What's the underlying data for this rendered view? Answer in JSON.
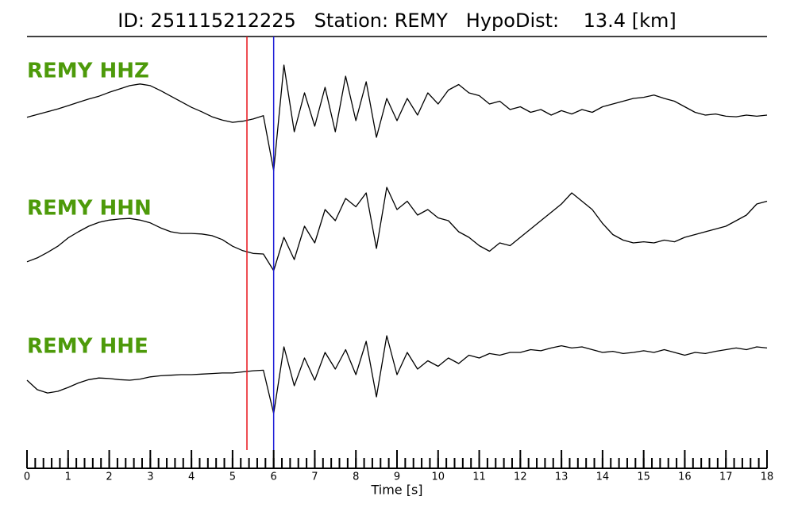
{
  "chart_data": {
    "type": "line",
    "title": "ID: 251115212225   Station: REMY   HypoDist:    13.4 [km]",
    "xlabel": "Time [s]",
    "xlim": [
      0,
      18
    ],
    "xticks": [
      0,
      1,
      2,
      3,
      4,
      5,
      6,
      7,
      8,
      9,
      10,
      11,
      12,
      13,
      14,
      15,
      16,
      17,
      18
    ],
    "xminor_interval": 0.2,
    "ylim": [
      -1,
      1
    ],
    "label_color": "#4d9a0a",
    "picks": [
      {
        "x": 5.35,
        "color": "#e8141a"
      },
      {
        "x": 6.0,
        "color": "#1a1ad6"
      }
    ],
    "x": [
      0,
      0.25,
      0.5,
      0.75,
      1,
      1.25,
      1.5,
      1.75,
      2,
      2.25,
      2.5,
      2.75,
      3,
      3.25,
      3.5,
      3.75,
      4,
      4.25,
      4.5,
      4.75,
      5,
      5.25,
      5.5,
      5.75,
      6,
      6.25,
      6.5,
      6.75,
      7,
      7.25,
      7.5,
      7.75,
      8,
      8.25,
      8.5,
      8.75,
      9,
      9.25,
      9.5,
      9.75,
      10,
      10.25,
      10.5,
      10.75,
      11,
      11.25,
      11.5,
      11.75,
      12,
      12.25,
      12.5,
      12.75,
      13,
      13.25,
      13.5,
      13.75,
      14,
      14.25,
      14.5,
      14.75,
      15,
      15.25,
      15.5,
      15.75,
      16,
      16.25,
      16.5,
      16.75,
      17,
      17.25,
      17.5,
      17.75,
      18
    ],
    "series": [
      {
        "name": "REMY HHZ",
        "color": "#000000",
        "values": [
          -0.04,
          0.01,
          0.06,
          0.11,
          0.17,
          0.23,
          0.29,
          0.34,
          0.41,
          0.47,
          0.53,
          0.56,
          0.53,
          0.44,
          0.34,
          0.24,
          0.14,
          0.06,
          -0.03,
          -0.09,
          -0.13,
          -0.11,
          -0.07,
          -0.01,
          -1.0,
          0.9,
          -0.3,
          0.4,
          -0.2,
          0.5,
          -0.3,
          0.7,
          -0.1,
          0.6,
          -0.4,
          0.3,
          -0.1,
          0.3,
          0.0,
          0.4,
          0.2,
          0.45,
          0.55,
          0.4,
          0.35,
          0.2,
          0.25,
          0.1,
          0.15,
          0.05,
          0.1,
          0.0,
          0.08,
          0.02,
          0.1,
          0.05,
          0.15,
          0.2,
          0.25,
          0.3,
          0.32,
          0.36,
          0.3,
          0.25,
          0.15,
          0.05,
          0.0,
          0.02,
          -0.02,
          -0.03,
          0.0,
          -0.02,
          0.0
        ]
      },
      {
        "name": "REMY HHN",
        "color": "#000000",
        "values": [
          -0.64,
          -0.57,
          -0.47,
          -0.36,
          -0.21,
          -0.1,
          0.0,
          0.07,
          0.11,
          0.13,
          0.14,
          0.11,
          0.06,
          -0.03,
          -0.1,
          -0.13,
          -0.13,
          -0.14,
          -0.17,
          -0.24,
          -0.36,
          -0.44,
          -0.49,
          -0.5,
          -0.8,
          -0.2,
          -0.6,
          0.0,
          -0.3,
          0.3,
          0.1,
          0.5,
          0.35,
          0.6,
          -0.4,
          0.7,
          0.3,
          0.45,
          0.2,
          0.3,
          0.15,
          0.1,
          -0.1,
          -0.2,
          -0.35,
          -0.45,
          -0.3,
          -0.35,
          -0.2,
          -0.05,
          0.1,
          0.25,
          0.4,
          0.6,
          0.45,
          0.3,
          0.05,
          -0.15,
          -0.25,
          -0.3,
          -0.28,
          -0.3,
          -0.25,
          -0.28,
          -0.2,
          -0.15,
          -0.1,
          -0.05,
          0.0,
          0.1,
          0.2,
          0.4,
          0.45
        ]
      },
      {
        "name": "REMY HHE",
        "color": "#000000",
        "values": [
          -0.2,
          -0.37,
          -0.43,
          -0.4,
          -0.33,
          -0.25,
          -0.19,
          -0.16,
          -0.17,
          -0.19,
          -0.2,
          -0.18,
          -0.14,
          -0.12,
          -0.11,
          -0.1,
          -0.1,
          -0.09,
          -0.08,
          -0.07,
          -0.07,
          -0.05,
          -0.03,
          -0.02,
          -0.8,
          0.4,
          -0.3,
          0.2,
          -0.2,
          0.3,
          0.0,
          0.35,
          -0.1,
          0.5,
          -0.5,
          0.6,
          -0.1,
          0.3,
          0.0,
          0.15,
          0.05,
          0.2,
          0.1,
          0.25,
          0.2,
          0.28,
          0.25,
          0.3,
          0.3,
          0.35,
          0.33,
          0.38,
          0.42,
          0.38,
          0.4,
          0.35,
          0.3,
          0.32,
          0.28,
          0.3,
          0.33,
          0.3,
          0.35,
          0.3,
          0.25,
          0.3,
          0.28,
          0.32,
          0.35,
          0.38,
          0.35,
          0.4,
          0.38
        ]
      }
    ]
  }
}
